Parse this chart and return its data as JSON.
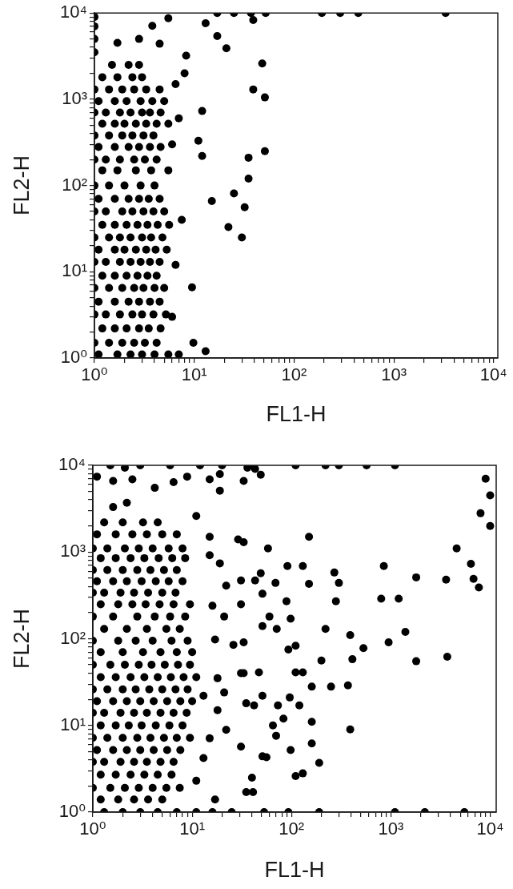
{
  "chart_data": [
    {
      "type": "scatter",
      "xlabel": "FL1-H",
      "ylabel": "FL2-H",
      "log": "xy",
      "marker": "circle",
      "color": "#000000",
      "xlim": [
        1,
        11000
      ],
      "ylim": [
        1,
        10000
      ],
      "xticks": [
        {
          "value": 1,
          "label": "10⁰"
        },
        {
          "value": 2,
          "label": null
        },
        {
          "value": 3,
          "label": null
        },
        {
          "value": 4,
          "label": null
        },
        {
          "value": 5,
          "label": null
        },
        {
          "value": 6,
          "label": null
        },
        {
          "value": 7,
          "label": null
        },
        {
          "value": 8,
          "label": null
        },
        {
          "value": 9,
          "label": null
        },
        {
          "value": 10,
          "label": "10¹"
        },
        {
          "value": 20,
          "label": null
        },
        {
          "value": 30,
          "label": null
        },
        {
          "value": 40,
          "label": null
        },
        {
          "value": 50,
          "label": null
        },
        {
          "value": 60,
          "label": null
        },
        {
          "value": 70,
          "label": null
        },
        {
          "value": 80,
          "label": null
        },
        {
          "value": 90,
          "label": null
        },
        {
          "value": 100,
          "label": "10²"
        },
        {
          "value": 200,
          "label": null
        },
        {
          "value": 300,
          "label": null
        },
        {
          "value": 400,
          "label": null
        },
        {
          "value": 500,
          "label": null
        },
        {
          "value": 600,
          "label": null
        },
        {
          "value": 700,
          "label": null
        },
        {
          "value": 800,
          "label": null
        },
        {
          "value": 900,
          "label": null
        },
        {
          "value": 1000,
          "label": "10³"
        },
        {
          "value": 2000,
          "label": null
        },
        {
          "value": 3000,
          "label": null
        },
        {
          "value": 4000,
          "label": null
        },
        {
          "value": 5000,
          "label": null
        },
        {
          "value": 6000,
          "label": null
        },
        {
          "value": 7000,
          "label": null
        },
        {
          "value": 8000,
          "label": null
        },
        {
          "value": 9000,
          "label": null
        },
        {
          "value": 10000,
          "label": "10⁴"
        }
      ],
      "yticks": [
        {
          "value": 1,
          "label": "10⁰"
        },
        {
          "value": 2,
          "label": null
        },
        {
          "value": 3,
          "label": null
        },
        {
          "value": 4,
          "label": null
        },
        {
          "value": 5,
          "label": null
        },
        {
          "value": 6,
          "label": null
        },
        {
          "value": 7,
          "label": null
        },
        {
          "value": 8,
          "label": null
        },
        {
          "value": 9,
          "label": null
        },
        {
          "value": 10,
          "label": "10¹"
        },
        {
          "value": 20,
          "label": null
        },
        {
          "value": 30,
          "label": null
        },
        {
          "value": 40,
          "label": null
        },
        {
          "value": 50,
          "label": null
        },
        {
          "value": 60,
          "label": null
        },
        {
          "value": 70,
          "label": null
        },
        {
          "value": 80,
          "label": null
        },
        {
          "value": 90,
          "label": null
        },
        {
          "value": 100,
          "label": "10²"
        },
        {
          "value": 200,
          "label": null
        },
        {
          "value": 300,
          "label": null
        },
        {
          "value": 400,
          "label": null
        },
        {
          "value": 500,
          "label": null
        },
        {
          "value": 600,
          "label": null
        },
        {
          "value": 700,
          "label": null
        },
        {
          "value": 800,
          "label": null
        },
        {
          "value": 900,
          "label": null
        },
        {
          "value": 1000,
          "label": "10³"
        },
        {
          "value": 2000,
          "label": null
        },
        {
          "value": 3000,
          "label": null
        },
        {
          "value": 4000,
          "label": null
        },
        {
          "value": 5000,
          "label": null
        },
        {
          "value": 6000,
          "label": null
        },
        {
          "value": 7000,
          "label": null
        },
        {
          "value": 8000,
          "label": null
        },
        {
          "value": 9000,
          "label": null
        },
        {
          "value": 10000,
          "label": "10⁴"
        }
      ],
      "x": [
        1.5,
        2.2,
        2.8,
        1.2,
        1.7,
        2.4,
        3,
        1,
        1.4,
        1.9,
        2.5,
        3.3,
        4.5,
        1.1,
        1.6,
        2.1,
        2.9,
        3.8,
        5,
        1,
        1.3,
        1.8,
        2.3,
        3,
        3.6,
        4.6,
        1.2,
        1.6,
        2,
        2.6,
        3.3,
        4.2,
        5.5,
        1,
        1.4,
        1.9,
        2.4,
        3.1,
        3.9,
        1.1,
        1.6,
        2.2,
        2.8,
        3.6,
        4.6,
        1,
        1.3,
        1.8,
        2.5,
        3.2,
        4.2,
        1.2,
        1.7,
        2.6,
        3.7,
        1,
        1.4,
        2,
        2.9,
        4,
        1.1,
        1.6,
        2.2,
        2.8,
        3.5,
        4.5,
        1,
        1.3,
        1.9,
        2.4,
        3.1,
        3.9,
        5,
        1.2,
        1.6,
        2.1,
        2.7,
        3.4,
        4.3,
        5.6,
        1,
        1.4,
        1.8,
        2.3,
        3,
        3.7,
        4.8,
        1.1,
        1.6,
        2,
        2.6,
        3.3,
        4.1,
        5.3,
        1,
        1.3,
        1.8,
        2.3,
        2.9,
        3.6,
        4.5,
        1.2,
        1.6,
        2.1,
        2.7,
        3.4,
        4.2,
        1,
        1.4,
        1.9,
        2.5,
        3.1,
        4,
        5,
        1.1,
        1.6,
        2.2,
        2.8,
        3.6,
        4.5,
        1,
        1.3,
        1.8,
        2.4,
        3,
        3.9,
        5.2,
        1.2,
        1.6,
        2.1,
        2.8,
        3.5,
        4.6,
        1,
        1.4,
        1.9,
        2.5,
        3.2,
        4.2,
        1.1,
        1.7,
        2.3,
        3,
        4,
        5.5,
        7,
        1,
        1,
        1,
        1,
        17,
        21,
        8.3,
        39,
        35,
        35,
        25,
        32,
        15,
        22,
        30,
        12,
        12,
        11,
        9.5,
        9.8,
        13,
        13,
        5.5,
        3.8,
        1.7,
        2.8,
        4.5,
        39,
        48,
        51,
        51,
        6.5,
        7,
        6,
        7.5,
        6.5,
        6,
        8,
        5.5,
        17,
        25,
        37,
        52,
        190,
        290,
        440,
        3300
      ],
      "values": [
        2500,
        2500,
        2500,
        1800,
        1800,
        1800,
        1800,
        1300,
        1300,
        1300,
        1300,
        1300,
        1300,
        950,
        950,
        950,
        950,
        950,
        950,
        700,
        700,
        700,
        700,
        700,
        700,
        700,
        520,
        520,
        520,
        520,
        520,
        520,
        520,
        380,
        380,
        380,
        380,
        380,
        380,
        280,
        280,
        280,
        280,
        280,
        280,
        200,
        200,
        200,
        200,
        200,
        200,
        150,
        150,
        150,
        150,
        100,
        100,
        100,
        100,
        100,
        70,
        70,
        70,
        70,
        70,
        70,
        50,
        50,
        50,
        50,
        50,
        50,
        50,
        35,
        35,
        35,
        35,
        35,
        35,
        35,
        25,
        25,
        25,
        25,
        25,
        25,
        25,
        18,
        18,
        18,
        18,
        18,
        18,
        18,
        13,
        13,
        13,
        13,
        13,
        13,
        13,
        9,
        9,
        9,
        9,
        9,
        9,
        6.5,
        6.5,
        6.5,
        6.5,
        6.5,
        6.5,
        6.5,
        4.5,
        4.5,
        4.5,
        4.5,
        4.5,
        4.5,
        3.2,
        3.2,
        3.2,
        3.2,
        3.2,
        3.2,
        3.2,
        2.2,
        2.2,
        2.2,
        2.2,
        2.2,
        2.2,
        1.5,
        1.5,
        1.5,
        1.5,
        1.5,
        1.5,
        1.1,
        1.1,
        1.1,
        1.1,
        1.1,
        1.1,
        1.1,
        3500,
        5000,
        7000,
        9000,
        5400,
        3900,
        3200,
        1300,
        210,
        120,
        81,
        56,
        66,
        33,
        25,
        730,
        220,
        330,
        6.6,
        1.5,
        1.2,
        7600,
        8700,
        7100,
        4500,
        5000,
        4400,
        8300,
        2600,
        1050,
        250,
        1500,
        600,
        300,
        40,
        12,
        3,
        2000,
        150,
        10000,
        10000,
        10000,
        10000,
        10000,
        10000,
        10000,
        10000
      ]
    },
    {
      "type": "scatter",
      "xlabel": "FL1-H",
      "ylabel": "FL2-H",
      "log": "xy",
      "marker": "circle",
      "color": "#000000",
      "xlim": [
        1,
        11500
      ],
      "ylim": [
        1,
        10000
      ],
      "xticks": [
        {
          "value": 1,
          "label": "10⁰"
        },
        {
          "value": 2,
          "label": null
        },
        {
          "value": 3,
          "label": null
        },
        {
          "value": 4,
          "label": null
        },
        {
          "value": 5,
          "label": null
        },
        {
          "value": 6,
          "label": null
        },
        {
          "value": 7,
          "label": null
        },
        {
          "value": 8,
          "label": null
        },
        {
          "value": 9,
          "label": null
        },
        {
          "value": 10,
          "label": "10¹"
        },
        {
          "value": 20,
          "label": null
        },
        {
          "value": 30,
          "label": null
        },
        {
          "value": 40,
          "label": null
        },
        {
          "value": 50,
          "label": null
        },
        {
          "value": 60,
          "label": null
        },
        {
          "value": 70,
          "label": null
        },
        {
          "value": 80,
          "label": null
        },
        {
          "value": 90,
          "label": null
        },
        {
          "value": 100,
          "label": "10²"
        },
        {
          "value": 200,
          "label": null
        },
        {
          "value": 300,
          "label": null
        },
        {
          "value": 400,
          "label": null
        },
        {
          "value": 500,
          "label": null
        },
        {
          "value": 600,
          "label": null
        },
        {
          "value": 700,
          "label": null
        },
        {
          "value": 800,
          "label": null
        },
        {
          "value": 900,
          "label": null
        },
        {
          "value": 1000,
          "label": "10³"
        },
        {
          "value": 2000,
          "label": null
        },
        {
          "value": 3000,
          "label": null
        },
        {
          "value": 4000,
          "label": null
        },
        {
          "value": 5000,
          "label": null
        },
        {
          "value": 6000,
          "label": null
        },
        {
          "value": 7000,
          "label": null
        },
        {
          "value": 8000,
          "label": null
        },
        {
          "value": 9000,
          "label": null
        },
        {
          "value": 10000,
          "label": "10⁴"
        }
      ],
      "yticks": [
        {
          "value": 1,
          "label": "10⁰"
        },
        {
          "value": 2,
          "label": null
        },
        {
          "value": 3,
          "label": null
        },
        {
          "value": 4,
          "label": null
        },
        {
          "value": 5,
          "label": null
        },
        {
          "value": 6,
          "label": null
        },
        {
          "value": 7,
          "label": null
        },
        {
          "value": 8,
          "label": null
        },
        {
          "value": 9,
          "label": null
        },
        {
          "value": 10,
          "label": "10¹"
        },
        {
          "value": 20,
          "label": null
        },
        {
          "value": 30,
          "label": null
        },
        {
          "value": 40,
          "label": null
        },
        {
          "value": 50,
          "label": null
        },
        {
          "value": 60,
          "label": null
        },
        {
          "value": 70,
          "label": null
        },
        {
          "value": 80,
          "label": null
        },
        {
          "value": 90,
          "label": null
        },
        {
          "value": 100,
          "label": "10²"
        },
        {
          "value": 200,
          "label": null
        },
        {
          "value": 300,
          "label": null
        },
        {
          "value": 400,
          "label": null
        },
        {
          "value": 500,
          "label": null
        },
        {
          "value": 600,
          "label": null
        },
        {
          "value": 700,
          "label": null
        },
        {
          "value": 800,
          "label": null
        },
        {
          "value": 900,
          "label": null
        },
        {
          "value": 1000,
          "label": "10³"
        },
        {
          "value": 2000,
          "label": null
        },
        {
          "value": 3000,
          "label": null
        },
        {
          "value": 4000,
          "label": null
        },
        {
          "value": 5000,
          "label": null
        },
        {
          "value": 6000,
          "label": null
        },
        {
          "value": 7000,
          "label": null
        },
        {
          "value": 8000,
          "label": null
        },
        {
          "value": 9000,
          "label": null
        },
        {
          "value": 10000,
          "label": "10⁴"
        }
      ],
      "x": [
        1.3,
        2,
        3.2,
        4.5,
        1.1,
        1.7,
        2.5,
        3.5,
        5,
        7,
        1,
        1.4,
        2.1,
        2.9,
        4,
        5.8,
        8,
        1.2,
        1.7,
        2.4,
        3.3,
        4.6,
        6.3,
        8.5,
        1,
        1.4,
        2,
        2.8,
        3.8,
        5.2,
        7,
        1.1,
        1.6,
        2.2,
        3.1,
        4.3,
        5.8,
        8,
        1,
        1.3,
        1.9,
        2.6,
        3.6,
        5,
        6.8,
        1.2,
        1.8,
        2.5,
        3.4,
        4.7,
        6.5,
        9.5,
        1,
        1.6,
        2.8,
        4.2,
        6,
        8.5,
        1.3,
        2.2,
        3.5,
        5.5,
        7.5,
        1,
        1.8,
        2.7,
        4,
        6.2,
        9,
        1.2,
        2,
        3.2,
        4.8,
        7,
        10,
        1,
        1.5,
        2.1,
        2.9,
        3.9,
        5.3,
        7.2,
        9.5,
        1.2,
        1.7,
        2.4,
        3.3,
        4.5,
        6.1,
        8.2,
        11,
        1,
        1.4,
        2,
        2.7,
        3.7,
        5,
        6.8,
        9,
        1.1,
        1.6,
        2.2,
        3,
        4.1,
        5.6,
        7.6,
        10,
        1,
        1.3,
        1.9,
        2.6,
        3.5,
        4.8,
        6.5,
        8.8,
        1.2,
        1.7,
        2.3,
        3.1,
        4.3,
        5.9,
        8,
        1,
        1.4,
        2,
        2.8,
        3.8,
        5.2,
        7,
        9.5,
        1.1,
        1.6,
        2.2,
        3,
        4.1,
        5.6,
        7.6,
        1,
        1.3,
        1.9,
        2.6,
        3.5,
        4.8,
        6.5,
        1.2,
        1.7,
        2.4,
        3.3,
        4.5,
        6.2,
        1,
        1.5,
        2.1,
        2.9,
        4,
        5.5,
        7.5,
        1.2,
        1.8,
        2.6,
        3.6,
        5,
        1.3,
        2,
        3,
        4.5,
        7,
        11,
        16,
        25,
        53,
        93,
        190,
        1100,
        2200,
        5500,
        1.5,
        3,
        6,
        12,
        20,
        42,
        110,
        220,
        300,
        570,
        1100,
        9000,
        10000,
        8000,
        10000,
        4600,
        6400,
        7700,
        6800,
        850,
        1800,
        3600,
        800,
        1200,
        1400,
        950,
        1800,
        3700,
        390,
        530,
        410,
        270,
        280,
        300,
        220,
        200,
        150,
        150,
        250,
        370,
        390,
        190,
        110,
        130,
        160,
        130,
        110,
        96,
        65,
        160,
        160,
        70,
        98,
        51,
        41,
        40,
        110,
        93,
        71,
        60,
        51,
        91,
        130,
        69,
        51,
        49,
        58,
        89,
        98,
        43,
        33,
        33,
        49,
        43,
        42,
        51,
        33,
        47,
        33,
        73,
        120,
        83,
        56,
        2.2,
        1.6,
        6.5,
        11,
        36,
        15,
        29,
        1.6,
        2.5,
        4.2,
        8.9,
        15,
        19,
        1.1,
        2.1,
        19,
        15,
        19,
        22,
        31,
        16,
        21,
        31,
        17,
        26,
        31,
        18,
        21,
        13,
        18,
        35,
        22,
        15,
        31,
        13,
        35,
        17,
        11
      ],
      "values": [
        2200,
        2200,
        2200,
        2200,
        1600,
        1600,
        1600,
        1600,
        1600,
        1600,
        1100,
        1100,
        1100,
        1100,
        1100,
        1100,
        1100,
        850,
        850,
        850,
        850,
        850,
        850,
        850,
        620,
        620,
        620,
        620,
        620,
        620,
        620,
        460,
        460,
        460,
        460,
        460,
        460,
        460,
        340,
        340,
        340,
        340,
        340,
        340,
        340,
        250,
        250,
        250,
        250,
        250,
        250,
        250,
        180,
        180,
        180,
        180,
        180,
        180,
        130,
        130,
        130,
        130,
        130,
        95,
        95,
        95,
        95,
        95,
        95,
        70,
        70,
        70,
        70,
        70,
        70,
        50,
        50,
        50,
        50,
        50,
        50,
        50,
        50,
        36,
        36,
        36,
        36,
        36,
        36,
        36,
        36,
        26,
        26,
        26,
        26,
        26,
        26,
        26,
        26,
        19,
        19,
        19,
        19,
        19,
        19,
        19,
        19,
        14,
        14,
        14,
        14,
        14,
        14,
        14,
        14,
        10,
        10,
        10,
        10,
        10,
        10,
        10,
        7.2,
        7.2,
        7.2,
        7.2,
        7.2,
        7.2,
        7.2,
        7.2,
        5.2,
        5.2,
        5.2,
        5.2,
        5.2,
        5.2,
        5.2,
        3.8,
        3.8,
        3.8,
        3.8,
        3.8,
        3.8,
        3.8,
        2.7,
        2.7,
        2.7,
        2.7,
        2.7,
        2.7,
        1.9,
        1.9,
        1.9,
        1.9,
        1.9,
        1.9,
        1.9,
        1.4,
        1.4,
        1.4,
        1.4,
        1.4,
        1,
        1,
        1,
        1,
        1,
        1,
        1,
        1,
        1,
        1,
        1,
        1,
        1,
        1,
        10000,
        10000,
        10000,
        10000,
        10000,
        10000,
        10000,
        10000,
        10000,
        10000,
        10000,
        7000,
        4500,
        2800,
        2000,
        1100,
        730,
        390,
        490,
        690,
        510,
        480,
        290,
        290,
        120,
        91,
        55,
        62,
        110,
        78,
        58,
        580,
        270,
        440,
        130,
        56,
        430,
        1500,
        28,
        29,
        9,
        3.7,
        2.6,
        2.8,
        28,
        41,
        41,
        21,
        10,
        11,
        6.2,
        7.6,
        5.2,
        4.4,
        1.7,
        2.5,
        83,
        75,
        130,
        180,
        140,
        690,
        690,
        440,
        330,
        570,
        1100,
        270,
        170,
        470,
        1300,
        6600,
        7800,
        9100,
        17,
        22,
        40,
        41,
        91,
        17,
        17,
        12,
        4.3,
        3700,
        3300,
        6400,
        2600,
        9400,
        1500,
        1400,
        6600,
        6900,
        5500,
        7400,
        6900,
        5100,
        7400,
        9400,
        7900,
        920,
        740,
        410,
        470,
        240,
        180,
        250,
        98,
        85,
        40,
        35,
        24,
        22,
        15,
        18,
        8.9,
        7.1,
        5.7,
        4.2,
        1.7,
        1.4,
        2.3
      ]
    }
  ]
}
